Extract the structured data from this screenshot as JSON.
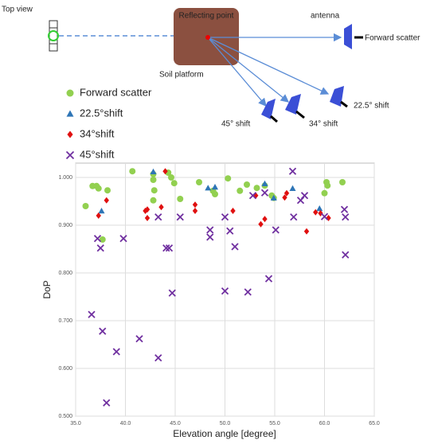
{
  "diagram": {
    "top_view": "Top view",
    "reflecting_point": "Reflecting point",
    "soil_platform": "Soil platform",
    "antenna": "antenna",
    "forward_scatter": "Forward scatter",
    "shift_22": "22.5° shift",
    "shift_34": "34° shift",
    "shift_45": "45° shift"
  },
  "chart_data": {
    "type": "scatter",
    "x_label": "Elevation angle [degree]",
    "y_label": "DoP",
    "grid": true,
    "xlim": [
      35,
      65
    ],
    "ylim": [
      0.5,
      1.03
    ],
    "xticks": [
      {
        "value": 35,
        "label": "35.0"
      },
      {
        "value": 40,
        "label": "40.0"
      },
      {
        "value": 45,
        "label": "45.0"
      },
      {
        "value": 50,
        "label": "50.0"
      },
      {
        "value": 55,
        "label": "55.0"
      },
      {
        "value": 60,
        "label": "60.0"
      },
      {
        "value": 65,
        "label": "65.0"
      }
    ],
    "yticks": [
      {
        "value": 0.5,
        "label": "0.500"
      },
      {
        "value": 0.6,
        "label": "0.600"
      },
      {
        "value": 0.7,
        "label": "0.700"
      },
      {
        "value": 0.8,
        "label": "0.800"
      },
      {
        "value": 0.9,
        "label": "0.900"
      },
      {
        "value": 1.0,
        "label": "1.000"
      }
    ],
    "series": [
      {
        "name": "Forward scatter",
        "color": "#92d050",
        "marker": "circle",
        "x": [
          36.0,
          36.7,
          37.1,
          37.3,
          37.7,
          38.2,
          40.7,
          42.8,
          42.8,
          42.9,
          42.8,
          44.3,
          44.6,
          44.9,
          45.5,
          47.4,
          48.8,
          49.0,
          50.3,
          51.5,
          52.2,
          53.2,
          54.0,
          54.7,
          54.9,
          60.0,
          60.2,
          60.3,
          61.8
        ],
        "values": [
          0.94,
          0.982,
          0.982,
          0.977,
          0.87,
          0.973,
          1.013,
          1.007,
          0.995,
          0.973,
          0.952,
          1.01,
          1.0,
          0.988,
          0.955,
          0.99,
          0.972,
          0.965,
          0.998,
          0.972,
          0.985,
          0.978,
          0.983,
          0.962,
          0.957,
          0.967,
          0.99,
          0.983,
          0.99
        ]
      },
      {
        "name": "22.5°shift",
        "color": "#2e75b6",
        "marker": "triangle",
        "x": [
          37.6,
          42.8,
          48.3,
          49.0,
          54.0,
          54.9,
          56.8,
          59.5
        ],
        "values": [
          0.93,
          1.012,
          0.978,
          0.98,
          0.987,
          0.957,
          0.977,
          0.935
        ]
      },
      {
        "name": "34°shift",
        "color": "#e01010",
        "marker": "diamond",
        "x": [
          37.3,
          38.1,
          42.0,
          42.2,
          42.2,
          43.6,
          44.0,
          47.0,
          47.0,
          50.8,
          53.1,
          53.6,
          54.0,
          56.0,
          56.2,
          58.2,
          59.1,
          59.6,
          60.4
        ],
        "values": [
          0.92,
          0.952,
          0.93,
          0.933,
          0.915,
          0.938,
          1.013,
          0.93,
          0.943,
          0.93,
          0.962,
          0.902,
          0.913,
          0.958,
          0.967,
          0.887,
          0.927,
          0.925,
          0.915
        ]
      },
      {
        "name": "45°shift",
        "color": "#7030a0",
        "marker": "x",
        "x": [
          36.6,
          37.2,
          37.5,
          37.7,
          38.1,
          39.1,
          39.8,
          41.4,
          43.3,
          43.3,
          44.1,
          44.4,
          44.7,
          45.5,
          48.5,
          48.5,
          50.0,
          50.0,
          50.5,
          51.0,
          52.3,
          52.8,
          54.0,
          54.4,
          55.1,
          56.8,
          56.9,
          57.6,
          58.0,
          60.0,
          62.0,
          62.1,
          62.1
        ],
        "values": [
          0.713,
          0.872,
          0.852,
          0.678,
          0.528,
          0.635,
          0.872,
          0.662,
          0.917,
          0.622,
          0.852,
          0.852,
          0.758,
          0.917,
          0.89,
          0.875,
          0.917,
          0.762,
          0.888,
          0.855,
          0.76,
          0.962,
          0.968,
          0.788,
          0.89,
          1.013,
          0.917,
          0.952,
          0.962,
          0.918,
          0.933,
          0.917,
          0.838
        ]
      }
    ]
  }
}
